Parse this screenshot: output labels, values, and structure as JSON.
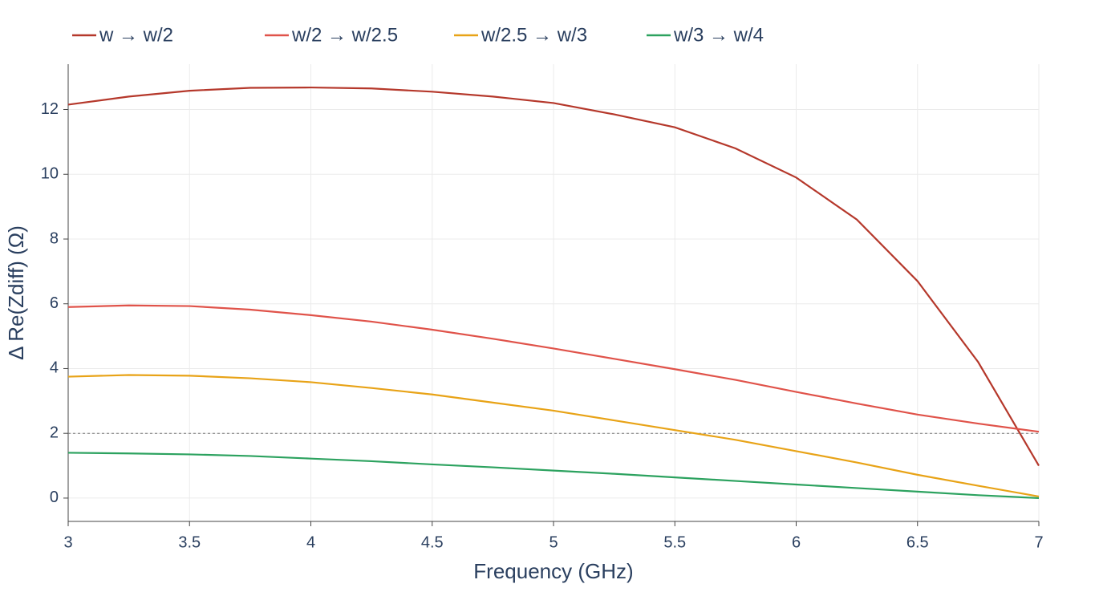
{
  "chart_data": {
    "type": "line",
    "x_label": "Frequency (GHz)",
    "y_label": "Δ Re(Zdiff) (Ω)",
    "x": [
      3,
      3.25,
      3.5,
      3.75,
      4,
      4.25,
      4.5,
      4.75,
      5,
      5.25,
      5.5,
      5.75,
      6,
      6.25,
      6.5,
      6.75,
      7
    ],
    "series": [
      {
        "name": "w → w/2",
        "color": "#b5382b",
        "values": [
          12.15,
          12.4,
          12.58,
          12.67,
          12.68,
          12.65,
          12.55,
          12.4,
          12.2,
          11.85,
          11.45,
          10.8,
          9.9,
          8.6,
          6.7,
          4.2,
          1.0
        ]
      },
      {
        "name": "w/2 → w/2.5",
        "color": "#e0534a",
        "values": [
          5.9,
          5.95,
          5.93,
          5.82,
          5.65,
          5.45,
          5.2,
          4.92,
          4.62,
          4.3,
          3.98,
          3.65,
          3.28,
          2.92,
          2.58,
          2.3,
          2.05
        ]
      },
      {
        "name": "w/2.5 → w/3",
        "color": "#e8a317",
        "values": [
          3.75,
          3.8,
          3.78,
          3.7,
          3.58,
          3.4,
          3.2,
          2.95,
          2.7,
          2.4,
          2.1,
          1.8,
          1.45,
          1.1,
          0.72,
          0.38,
          0.05
        ]
      },
      {
        "name": "w/3 → w/4",
        "color": "#2ca25f",
        "values": [
          1.4,
          1.38,
          1.35,
          1.3,
          1.22,
          1.14,
          1.04,
          0.95,
          0.85,
          0.75,
          0.64,
          0.53,
          0.42,
          0.31,
          0.2,
          0.09,
          0.0
        ]
      }
    ],
    "reference_line": 2,
    "xlim": [
      3,
      7
    ],
    "xticks": [
      3,
      3.5,
      4,
      4.5,
      5,
      5.5,
      6,
      6.5,
      7
    ],
    "ylim": [
      -0.72,
      13.4
    ],
    "yticks": [
      0,
      2,
      4,
      6,
      8,
      10,
      12
    ],
    "grid": true,
    "legend": "top-left"
  }
}
